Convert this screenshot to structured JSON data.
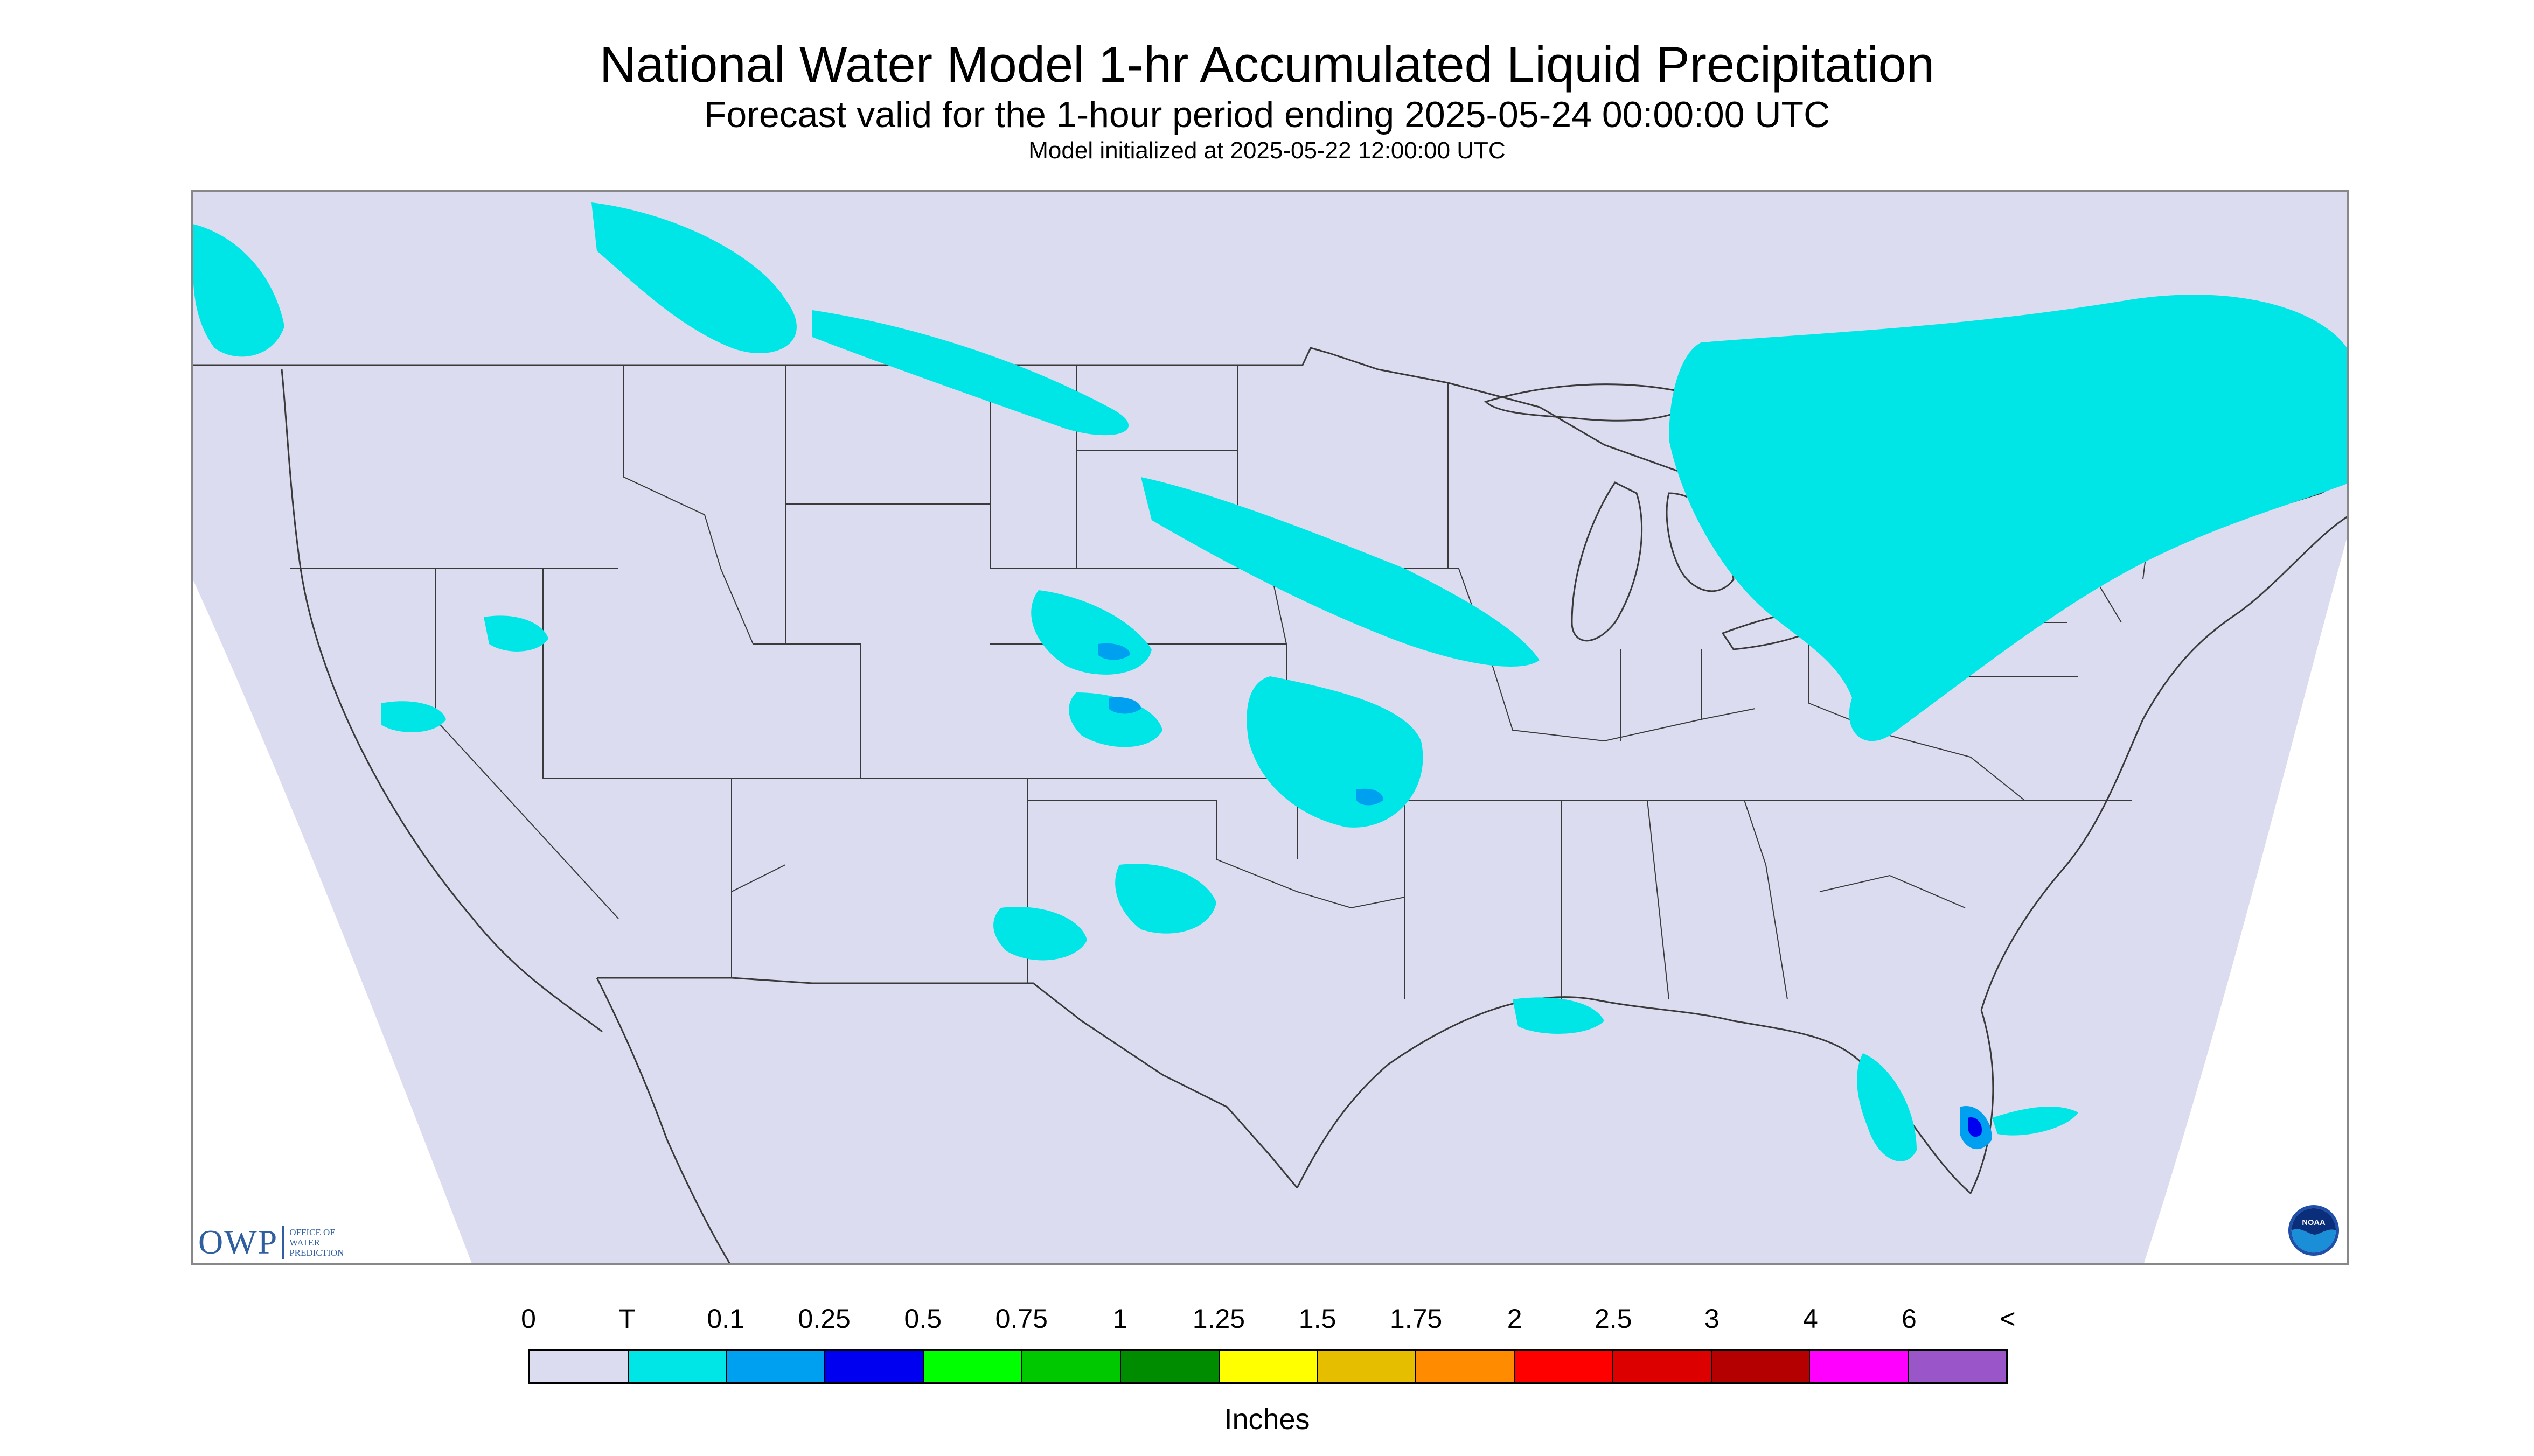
{
  "title": "National Water Model 1-hr Accumulated Liquid Precipitation",
  "subtitle": "Forecast valid for the 1-hour period ending 2025-05-24 00:00:00 UTC",
  "init_text": "Model initialized at 2025-05-22 12:00:00 UTC",
  "logos": {
    "owp_mark": "OWP",
    "owp_text_1": "Office of",
    "owp_text_2": "Water",
    "owp_text_3": "Prediction",
    "noaa_text": "NOAA"
  },
  "map": {
    "background_color": "#dcdcf0",
    "outside_color": "#ffffff",
    "boundary_color": "#3a3a3a",
    "precip_colors": {
      "trace": "#00e6e6",
      "light": "#00a0f0",
      "moderate": "#0000f0"
    }
  },
  "legend": {
    "unit": "Inches",
    "labels": [
      "0",
      "T",
      "0.1",
      "0.25",
      "0.5",
      "0.75",
      "1",
      "1.25",
      "1.5",
      "1.75",
      "2",
      "2.5",
      "3",
      "4",
      "6",
      "<"
    ],
    "colors": [
      "#dcdcf0",
      "#00e6e6",
      "#00a0f0",
      "#0000f0",
      "#00ff00",
      "#00c800",
      "#008c00",
      "#ffff00",
      "#e6be00",
      "#ff8c00",
      "#ff0000",
      "#dc0000",
      "#b40000",
      "#ff00ff",
      "#9a55c8"
    ]
  }
}
